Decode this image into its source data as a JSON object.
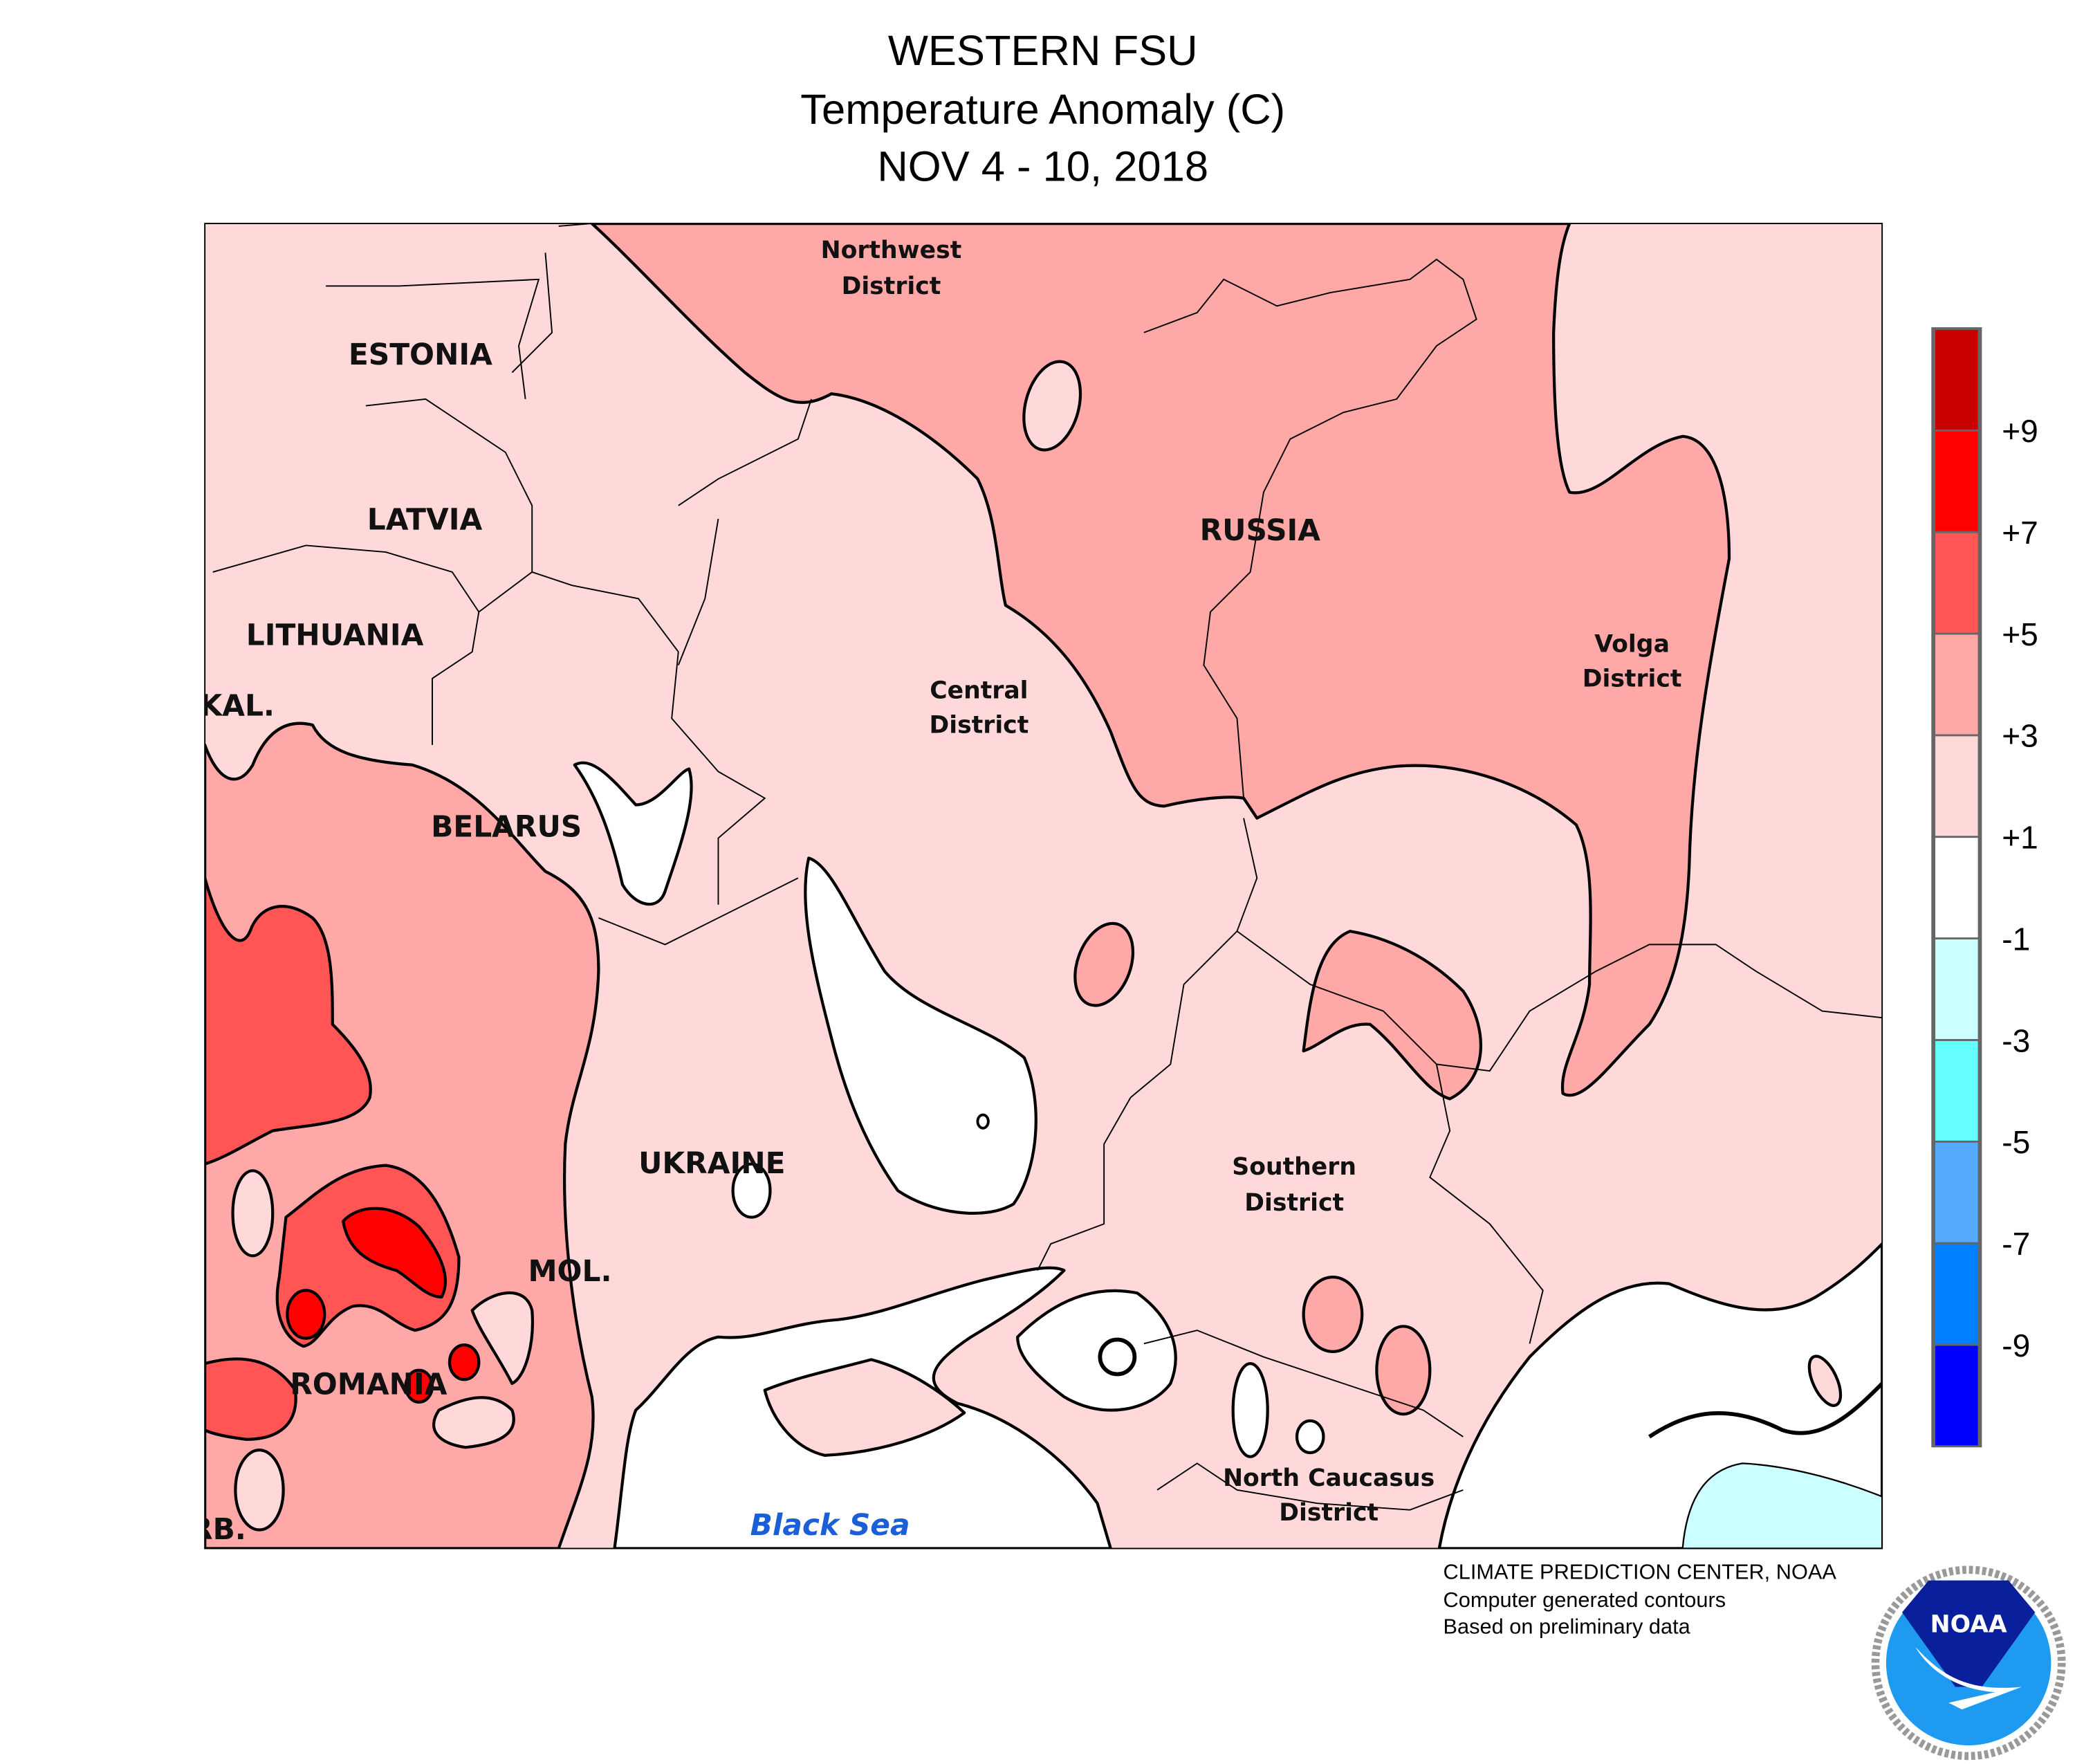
{
  "title": {
    "line1": "WESTERN FSU",
    "line2": "Temperature Anomaly (C)",
    "line3": "NOV 4 - 10, 2018"
  },
  "labels": {
    "estonia": "ESTONIA",
    "latvia": "LATVIA",
    "lithuania": "LITHUANIA",
    "kal": "KAL.",
    "belarus": "BELARUS",
    "ukraine": "UKRAINE",
    "mol": "MOL.",
    "romania": "ROMANIA",
    "rb": "RB.",
    "russia": "RUSSIA",
    "northwest_1": "Northwest",
    "northwest_2": "District",
    "central_1": "Central",
    "central_2": "District",
    "volga_1": "Volga",
    "volga_2": "District",
    "southern_1": "Southern",
    "southern_2": "District",
    "ncaucasus_1": "North Caucasus",
    "ncaucasus_2": "District",
    "black_sea": "Black Sea"
  },
  "credits": {
    "line1": "CLIMATE PREDICTION CENTER, NOAA",
    "line2": "Computer generated contours",
    "line3": "Based on preliminary data",
    "logo_text": "NOAA"
  },
  "chart_data": {
    "type": "heatmap",
    "title": "WESTERN FSU Temperature Anomaly (C) NOV 4 - 10, 2018",
    "legend": {
      "placement": "right",
      "tick_labels": [
        "+9",
        "+7",
        "+5",
        "+3",
        "+1",
        "-1",
        "-3",
        "-5",
        "-7",
        "-9"
      ],
      "bins": [
        {
          "range": ">9",
          "color": "#c80000"
        },
        {
          "range": "7 to 9",
          "color": "#ff0000"
        },
        {
          "range": "5 to 7",
          "color": "#ff5555"
        },
        {
          "range": "3 to 5",
          "color": "#ffa8a8"
        },
        {
          "range": "1 to 3",
          "color": "#ffd9d9"
        },
        {
          "range": "-1 to 1",
          "color": "#ffffff"
        },
        {
          "range": "-3 to -1",
          "color": "#ccffff"
        },
        {
          "range": "-5 to -3",
          "color": "#66ffff"
        },
        {
          "range": "-7 to -5",
          "color": "#55aaff"
        },
        {
          "range": "-9 to -7",
          "color": "#0080ff"
        },
        {
          "range": "<-9",
          "color": "#0000ff"
        }
      ]
    }
  }
}
